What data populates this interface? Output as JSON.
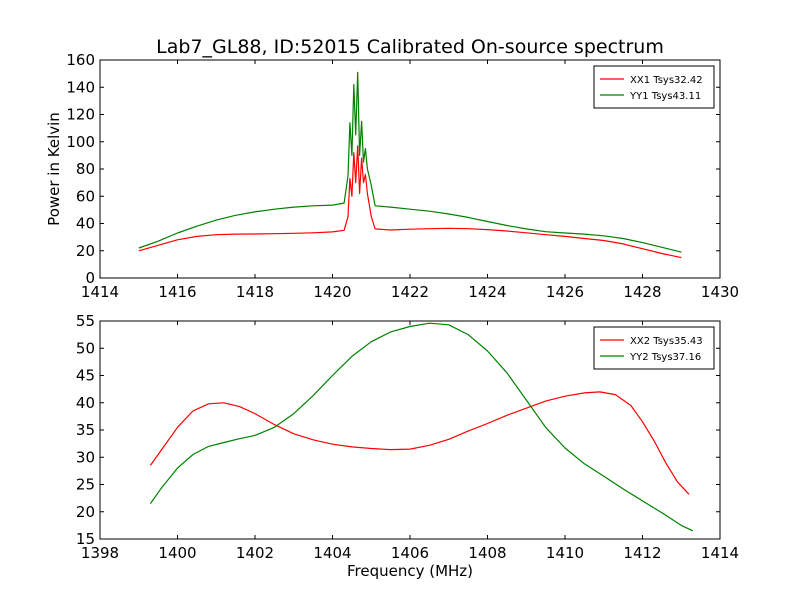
{
  "figure": {
    "title": "Lab7_GL88, ID:52015 Calibrated On-source spectrum"
  },
  "colors": {
    "red": "#ff0000",
    "green": "#008000",
    "axes": "#000000",
    "background": "#ffffff"
  },
  "chart_data": [
    {
      "type": "line",
      "title": "Lab7_GL88, ID:52015 Calibrated On-source spectrum",
      "xlabel": "",
      "ylabel": "Power in Kelvin",
      "xlim": [
        1414,
        1430
      ],
      "ylim": [
        0,
        160
      ],
      "xticks": [
        "1414",
        "1416",
        "1418",
        "1420",
        "1422",
        "1424",
        "1426",
        "1428",
        "1430"
      ],
      "yticks": [
        "0",
        "20",
        "40",
        "60",
        "80",
        "100",
        "120",
        "140",
        "160"
      ],
      "grid": false,
      "legend": "top-right",
      "series": [
        {
          "name": "XX1 Tsys32.42",
          "color": "#ff0000",
          "x": [
            1415.0,
            1415.5,
            1416.0,
            1416.5,
            1417.0,
            1417.5,
            1418.0,
            1418.5,
            1419.0,
            1419.5,
            1420.0,
            1420.3,
            1420.4,
            1420.45,
            1420.5,
            1420.55,
            1420.6,
            1420.65,
            1420.7,
            1420.75,
            1420.8,
            1420.85,
            1420.9,
            1421.0,
            1421.1,
            1421.5,
            1422.0,
            1422.5,
            1423.0,
            1423.5,
            1424.0,
            1424.5,
            1425.0,
            1425.5,
            1426.0,
            1426.5,
            1427.0,
            1427.5,
            1428.0,
            1428.5,
            1429.0
          ],
          "y": [
            20,
            24,
            28,
            30.5,
            31.8,
            32.2,
            32.3,
            32.5,
            32.8,
            33.2,
            33.8,
            35,
            45,
            73,
            60,
            92,
            70,
            97,
            62,
            88,
            70,
            76,
            62,
            45,
            36,
            35.2,
            35.8,
            36.2,
            36.5,
            36.2,
            35.5,
            34.5,
            33.2,
            31.8,
            30.5,
            29,
            27.5,
            25,
            21.5,
            18,
            15
          ]
        },
        {
          "name": "YY1 Tsys43.11",
          "color": "#008000",
          "x": [
            1415.0,
            1415.5,
            1416.0,
            1416.5,
            1417.0,
            1417.5,
            1418.0,
            1418.5,
            1419.0,
            1419.5,
            1420.0,
            1420.3,
            1420.4,
            1420.45,
            1420.5,
            1420.55,
            1420.6,
            1420.65,
            1420.7,
            1420.75,
            1420.8,
            1420.85,
            1420.9,
            1421.0,
            1421.1,
            1421.5,
            1422.0,
            1422.5,
            1423.0,
            1423.5,
            1424.0,
            1424.5,
            1425.0,
            1425.5,
            1426.0,
            1426.5,
            1427.0,
            1427.5,
            1428.0,
            1428.5,
            1429.0
          ],
          "y": [
            22,
            27,
            33,
            38,
            42.5,
            46,
            48.5,
            50.5,
            52,
            53,
            53.5,
            55,
            75,
            114,
            90,
            142,
            105,
            151,
            90,
            115,
            85,
            95,
            80,
            68,
            53,
            52,
            50.5,
            49,
            47,
            44.5,
            41.5,
            38.5,
            36,
            34,
            33,
            32.2,
            31,
            29,
            26,
            22.5,
            19
          ]
        }
      ]
    },
    {
      "type": "line",
      "title": "",
      "xlabel": "Frequency (MHz)",
      "ylabel": "",
      "xlim": [
        1398,
        1414
      ],
      "ylim": [
        15,
        55
      ],
      "xticks": [
        "1398",
        "1400",
        "1402",
        "1404",
        "1406",
        "1408",
        "1410",
        "1412",
        "1414"
      ],
      "yticks": [
        "15",
        "20",
        "25",
        "30",
        "35",
        "40",
        "45",
        "50",
        "55"
      ],
      "grid": false,
      "legend": "top-right",
      "series": [
        {
          "name": "XX2 Tsys35.43",
          "color": "#ff0000",
          "x": [
            1399.3,
            1399.6,
            1400.0,
            1400.4,
            1400.8,
            1401.2,
            1401.6,
            1402.0,
            1402.5,
            1403.0,
            1403.5,
            1404.0,
            1404.5,
            1405.0,
            1405.5,
            1406.0,
            1406.5,
            1407.0,
            1407.5,
            1408.0,
            1408.5,
            1409.0,
            1409.5,
            1410.0,
            1410.5,
            1410.9,
            1411.3,
            1411.7,
            1412.0,
            1412.3,
            1412.6,
            1412.9,
            1413.2
          ],
          "y": [
            28.5,
            31.5,
            35.5,
            38.5,
            39.8,
            40,
            39.3,
            38,
            36,
            34.3,
            33.2,
            32.4,
            31.9,
            31.6,
            31.4,
            31.5,
            32.2,
            33.3,
            34.8,
            36.2,
            37.7,
            39,
            40.3,
            41.2,
            41.8,
            42,
            41.5,
            39.5,
            36.5,
            33,
            29,
            25.5,
            23.2
          ]
        },
        {
          "name": "YY2 Tsys37.16",
          "color": "#008000",
          "x": [
            1399.3,
            1399.6,
            1400.0,
            1400.4,
            1400.8,
            1401.2,
            1401.6,
            1402.0,
            1402.5,
            1403.0,
            1403.5,
            1404.0,
            1404.5,
            1405.0,
            1405.5,
            1406.0,
            1406.5,
            1407.0,
            1407.5,
            1408.0,
            1408.5,
            1409.0,
            1409.5,
            1410.0,
            1410.5,
            1411.0,
            1411.5,
            1412.0,
            1412.5,
            1413.0,
            1413.3
          ],
          "y": [
            21.5,
            24.5,
            28,
            30.5,
            32,
            32.7,
            33.4,
            34,
            35.5,
            38,
            41.3,
            45,
            48.5,
            51.2,
            53,
            54,
            54.6,
            54.3,
            52.5,
            49.5,
            45.5,
            40.5,
            35.5,
            31.7,
            28.8,
            26.5,
            24.2,
            22,
            19.8,
            17.5,
            16.5
          ]
        }
      ]
    }
  ]
}
